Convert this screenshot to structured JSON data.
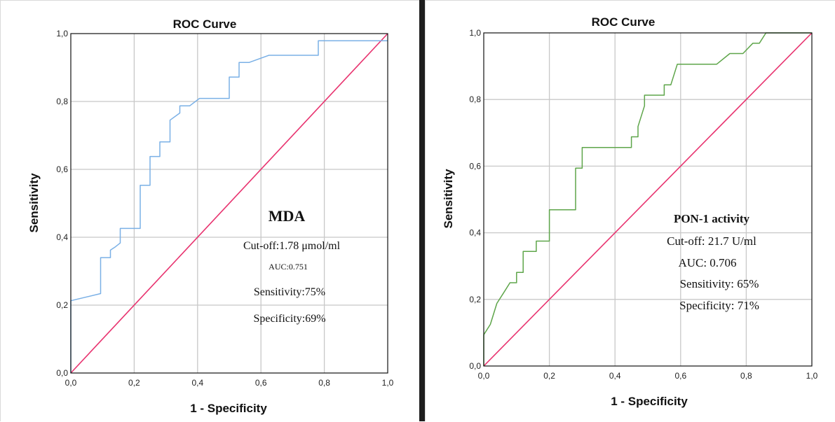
{
  "colors": {
    "left_series": "#7ab0e6",
    "right_series": "#5ea54a",
    "reference": "#e8336f",
    "divider": "#1e1e1e"
  },
  "chart_data": [
    {
      "type": "line",
      "title": "ROC Curve",
      "xlabel": "1 - Specificity",
      "ylabel": "Sensitivity",
      "xlim": [
        0,
        1
      ],
      "ylim": [
        0,
        1
      ],
      "xticks": [
        "0,0",
        "0,2",
        "0,4",
        "0,6",
        "0,8",
        "1,0"
      ],
      "yticks": [
        "0,0",
        "0,2",
        "0,4",
        "0,6",
        "0,8",
        "1,0"
      ],
      "grid": true,
      "legend": "none",
      "series": [
        {
          "color": "#7ab0e6",
          "x": [
            0,
            0,
            0.094,
            0.094,
            0.125,
            0.125,
            0.141,
            0.156,
            0.156,
            0.219,
            0.219,
            0.25,
            0.25,
            0.281,
            0.281,
            0.313,
            0.313,
            0.344,
            0.344,
            0.375,
            0.406,
            0.5,
            0.5,
            0.531,
            0.531,
            0.563,
            0.625,
            0.781,
            0.781,
            1.0
          ],
          "y": [
            0,
            0.213,
            0.234,
            0.34,
            0.34,
            0.362,
            0.372,
            0.383,
            0.426,
            0.426,
            0.553,
            0.553,
            0.638,
            0.638,
            0.681,
            0.681,
            0.745,
            0.766,
            0.787,
            0.787,
            0.809,
            0.809,
            0.872,
            0.872,
            0.915,
            0.915,
            0.936,
            0.936,
            0.979,
            0.979
          ]
        },
        {
          "color": "#e8336f",
          "x": [
            0,
            1
          ],
          "y": [
            0,
            1
          ]
        }
      ],
      "annotation": {
        "heading": "MDA",
        "lines": [
          "Cut-off:1.78 μmol/ml",
          "AUC:0.751",
          "Sensitivity:75%",
          "Specificity:69%"
        ]
      }
    },
    {
      "type": "line",
      "title": "ROC Curve",
      "xlabel": "1 - Specificity",
      "ylabel": "Sensitivity",
      "xlim": [
        0,
        1
      ],
      "ylim": [
        0,
        1
      ],
      "xticks": [
        "0,0",
        "0,2",
        "0,4",
        "0,6",
        "0,8",
        "1,0"
      ],
      "yticks": [
        "0,0",
        "0,2",
        "0,4",
        "0,6",
        "0,8",
        "1,0"
      ],
      "grid": true,
      "legend": "none",
      "series": [
        {
          "color": "#5ea54a",
          "x": [
            0,
            0,
            0.02,
            0.04,
            0.06,
            0.08,
            0.1,
            0.1,
            0.12,
            0.12,
            0.16,
            0.16,
            0.2,
            0.2,
            0.28,
            0.28,
            0.3,
            0.3,
            0.45,
            0.45,
            0.47,
            0.47,
            0.49,
            0.49,
            0.55,
            0.55,
            0.57,
            0.59,
            0.71,
            0.75,
            0.79,
            0.82,
            0.84,
            0.86,
            1.0
          ],
          "y": [
            0,
            0.094,
            0.125,
            0.188,
            0.219,
            0.25,
            0.25,
            0.281,
            0.281,
            0.344,
            0.344,
            0.375,
            0.375,
            0.469,
            0.469,
            0.594,
            0.594,
            0.656,
            0.656,
            0.688,
            0.688,
            0.719,
            0.781,
            0.813,
            0.813,
            0.844,
            0.844,
            0.906,
            0.906,
            0.938,
            0.938,
            0.969,
            0.969,
            1.0,
            1.0
          ]
        },
        {
          "color": "#e8336f",
          "x": [
            0,
            1
          ],
          "y": [
            0,
            1
          ]
        }
      ],
      "annotation": {
        "heading": "PON-1 activity",
        "lines": [
          "Cut-off: 21.7 U/ml",
          "AUC: 0.706",
          "Sensitivity: 65%",
          "Specificity: 71%"
        ]
      }
    }
  ]
}
